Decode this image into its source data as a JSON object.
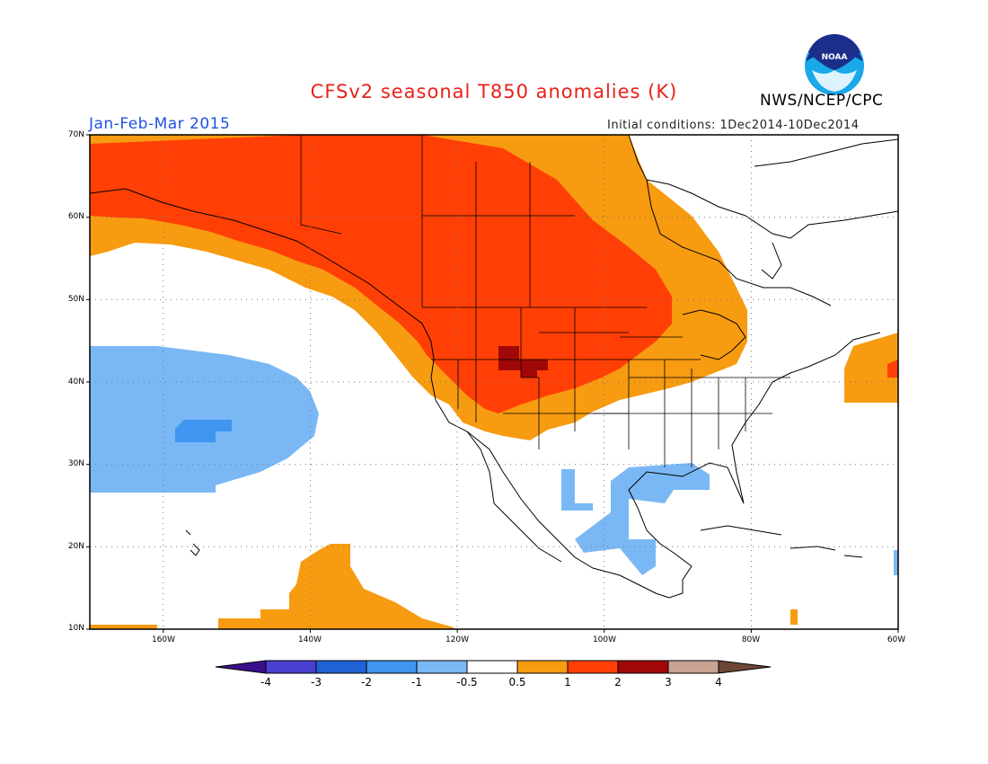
{
  "title": "CFSv2 seasonal T850 anomalies (K)",
  "agency": "NWS/NCEP/CPC",
  "logo_text": "NOAA",
  "season": "Jan-Feb-Mar 2015",
  "initial_conditions": "Initial conditions: 1Dec2014-10Dec2014",
  "colors": {
    "title": "#e8221a",
    "season": "#2050e0",
    "neg4": "#3a0f8c",
    "neg3": "#4b3fcf",
    "neg2": "#1f62d6",
    "neg1": "#3f95ef",
    "neg05": "#7ab8f5",
    "neutral": "#ffffff",
    "pos05": "#f79b10",
    "pos1": "#ff3f05",
    "pos2": "#a00808",
    "pos3": "#c9a291",
    "pos4": "#6e4637"
  },
  "map": {
    "lat_labels": [
      "70N",
      "60N",
      "50N",
      "40N",
      "30N",
      "20N",
      "10N"
    ],
    "lon_labels": [
      "160W",
      "140W",
      "120W",
      "100W",
      "80W",
      "60W"
    ],
    "lat_range": [
      10,
      70
    ],
    "lon_range": [
      -170,
      -60
    ]
  },
  "colorbar": {
    "labels": [
      "-4",
      "-3",
      "-2",
      "-1",
      "-0.5",
      "0.5",
      "1",
      "2",
      "3",
      "4"
    ]
  }
}
